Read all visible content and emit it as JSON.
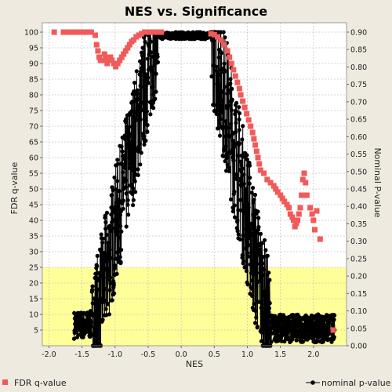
{
  "chart_data": {
    "type": "scatter",
    "title": "NES vs. Significance",
    "xlabel": "NES",
    "ylabel_left": "FDR q-value",
    "ylabel_right": "Nominal P-value",
    "xlim": [
      -2.1,
      2.5
    ],
    "ylim_left": [
      0,
      103
    ],
    "ylim_right": [
      0,
      0.927
    ],
    "x_ticks": [
      "-2.0",
      "-1.5",
      "-1.0",
      "-0.5",
      "0.0",
      "0.5",
      "1.0",
      "1.5",
      "2.0"
    ],
    "y_left_ticks": [
      "5",
      "10",
      "15",
      "20",
      "25",
      "30",
      "35",
      "40",
      "45",
      "50",
      "55",
      "60",
      "65",
      "70",
      "75",
      "80",
      "85",
      "90",
      "95",
      "100"
    ],
    "y_right_ticks": [
      "0.00",
      "0.05",
      "0.10",
      "0.15",
      "0.20",
      "0.25",
      "0.30",
      "0.35",
      "0.40",
      "0.45",
      "0.50",
      "0.55",
      "0.60",
      "0.65",
      "0.70",
      "0.75",
      "0.80",
      "0.85",
      "0.90"
    ],
    "highlight_band": {
      "y_from": 0,
      "y_to": 25,
      "color": "#ffff99"
    },
    "grid": true,
    "legend_position": "bottom",
    "series": [
      {
        "name": "FDR q-value",
        "axis": "left",
        "color": "#f05a5a",
        "marker": "square",
        "points": [
          [
            -1.92,
            100
          ],
          [
            -1.78,
            100
          ],
          [
            -1.72,
            100
          ],
          [
            -1.66,
            100
          ],
          [
            -1.6,
            100
          ],
          [
            -1.54,
            100
          ],
          [
            -1.48,
            100
          ],
          [
            -1.42,
            100
          ],
          [
            -1.36,
            100
          ],
          [
            -1.3,
            99
          ],
          [
            -1.28,
            96
          ],
          [
            -1.26,
            94
          ],
          [
            -1.24,
            92
          ],
          [
            -1.22,
            91
          ],
          [
            -1.18,
            91
          ],
          [
            -1.16,
            93
          ],
          [
            -1.14,
            92
          ],
          [
            -1.12,
            90
          ],
          [
            -1.1,
            91
          ],
          [
            -1.07,
            92
          ],
          [
            -1.05,
            91
          ],
          [
            -1.02,
            90
          ],
          [
            -0.99,
            89
          ],
          [
            -0.96,
            90
          ],
          [
            -0.93,
            91
          ],
          [
            -0.9,
            92
          ],
          [
            -0.87,
            93
          ],
          [
            -0.84,
            94
          ],
          [
            -0.81,
            95
          ],
          [
            -0.78,
            96
          ],
          [
            -0.75,
            97
          ],
          [
            -0.72,
            97.5
          ],
          [
            -0.68,
            98.5
          ],
          [
            -0.64,
            99
          ],
          [
            -0.6,
            99.5
          ],
          [
            -0.55,
            100
          ],
          [
            -0.5,
            100
          ],
          [
            -0.45,
            100
          ],
          [
            -0.4,
            100
          ],
          [
            -0.35,
            100
          ],
          [
            -0.3,
            100
          ],
          [
            0.45,
            99.5
          ],
          [
            0.5,
            99.2
          ],
          [
            0.55,
            98.5
          ],
          [
            0.6,
            97.5
          ],
          [
            0.65,
            96
          ],
          [
            0.7,
            94
          ],
          [
            0.73,
            92
          ],
          [
            0.76,
            90
          ],
          [
            0.79,
            88
          ],
          [
            0.82,
            86
          ],
          [
            0.85,
            84
          ],
          [
            0.88,
            82
          ],
          [
            0.9,
            80
          ],
          [
            0.93,
            78
          ],
          [
            0.96,
            76
          ],
          [
            0.99,
            74
          ],
          [
            1.02,
            72
          ],
          [
            1.05,
            70
          ],
          [
            1.08,
            68
          ],
          [
            1.1,
            66
          ],
          [
            1.12,
            64
          ],
          [
            1.14,
            62
          ],
          [
            1.16,
            60
          ],
          [
            1.18,
            58
          ],
          [
            1.2,
            56
          ],
          [
            1.25,
            55
          ],
          [
            1.3,
            53
          ],
          [
            1.35,
            52
          ],
          [
            1.4,
            51
          ],
          [
            1.43,
            50
          ],
          [
            1.46,
            49
          ],
          [
            1.5,
            48
          ],
          [
            1.53,
            47
          ],
          [
            1.56,
            46
          ],
          [
            1.6,
            45
          ],
          [
            1.63,
            44
          ],
          [
            1.65,
            42
          ],
          [
            1.68,
            41
          ],
          [
            1.7,
            40
          ],
          [
            1.72,
            38
          ],
          [
            1.74,
            39
          ],
          [
            1.76,
            40
          ],
          [
            1.78,
            42
          ],
          [
            1.8,
            44
          ],
          [
            1.82,
            48
          ],
          [
            1.84,
            53
          ],
          [
            1.86,
            55
          ],
          [
            1.88,
            52
          ],
          [
            1.9,
            48
          ],
          [
            1.95,
            44
          ],
          [
            1.98,
            42
          ],
          [
            2.0,
            40
          ],
          [
            2.02,
            37
          ],
          [
            2.05,
            43
          ],
          [
            2.1,
            34
          ],
          [
            2.3,
            5
          ]
        ]
      },
      {
        "name": "nominal p-value",
        "axis": "right",
        "color": "#000000",
        "marker": "circle",
        "line": true,
        "x_range": [
          -1.62,
          2.32
        ]
      }
    ]
  }
}
